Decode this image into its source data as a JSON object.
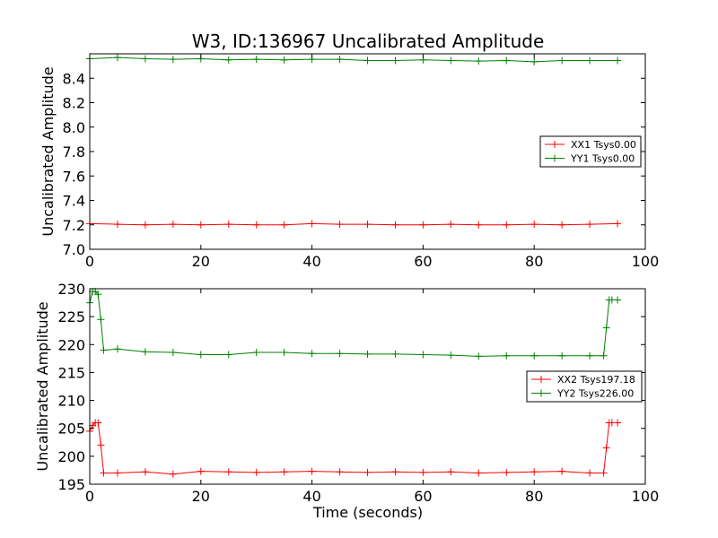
{
  "chart_data": [
    {
      "type": "line",
      "title": "W3, ID:136967 Uncalibrated Amplitude",
      "xlabel": "",
      "ylabel": "Uncalibrated Amplitude",
      "xlim": [
        0,
        100
      ],
      "ylim": [
        7.0,
        8.6
      ],
      "xticks": [
        "0",
        "20",
        "40",
        "60",
        "80",
        "100"
      ],
      "yticks": [
        "7.0",
        "7.2",
        "7.4",
        "7.6",
        "7.8",
        "8.0",
        "8.2",
        "8.4"
      ],
      "grid": false,
      "legend_position": "center-right",
      "marker": "+",
      "series": [
        {
          "name": "XX1 Tsys0.00",
          "color": "#ff0000",
          "x": [
            0,
            5,
            10,
            15,
            20,
            25,
            30,
            35,
            40,
            45,
            50,
            55,
            60,
            65,
            70,
            75,
            80,
            85,
            90,
            95
          ],
          "values": [
            7.21,
            7.205,
            7.2,
            7.205,
            7.2,
            7.205,
            7.2,
            7.2,
            7.21,
            7.205,
            7.205,
            7.2,
            7.2,
            7.205,
            7.2,
            7.2,
            7.205,
            7.2,
            7.205,
            7.21
          ]
        },
        {
          "name": "YY1 Tsys0.00",
          "color": "#008000",
          "x": [
            0,
            5,
            10,
            15,
            20,
            25,
            30,
            35,
            40,
            45,
            50,
            55,
            60,
            65,
            70,
            75,
            80,
            85,
            90,
            95
          ],
          "values": [
            8.56,
            8.57,
            8.56,
            8.555,
            8.56,
            8.55,
            8.555,
            8.55,
            8.555,
            8.555,
            8.545,
            8.545,
            8.55,
            8.545,
            8.54,
            8.545,
            8.535,
            8.545,
            8.545,
            8.545
          ]
        }
      ]
    },
    {
      "type": "line",
      "title": "",
      "xlabel": "Time (seconds)",
      "ylabel": "Uncalibrated Amplitude",
      "xlim": [
        0,
        100
      ],
      "ylim": [
        195,
        230
      ],
      "xticks": [
        "0",
        "20",
        "40",
        "60",
        "80",
        "100"
      ],
      "yticks": [
        "195",
        "200",
        "205",
        "210",
        "215",
        "220",
        "225",
        "230"
      ],
      "grid": false,
      "legend_position": "center-right",
      "marker": "+",
      "series": [
        {
          "name": "XX2 Tsys197.18",
          "color": "#ff0000",
          "x": [
            0,
            0.5,
            1,
            1.5,
            2,
            2.5,
            5,
            10,
            15,
            20,
            25,
            30,
            35,
            40,
            45,
            50,
            55,
            60,
            65,
            70,
            75,
            80,
            85,
            90,
            92.5,
            93,
            93.5,
            94,
            95
          ],
          "values": [
            204.5,
            205.5,
            206,
            206,
            202,
            197,
            197,
            197.2,
            196.8,
            197.3,
            197.2,
            197.1,
            197.2,
            197.3,
            197.2,
            197.1,
            197.2,
            197.1,
            197.2,
            197,
            197.1,
            197.2,
            197.3,
            197,
            197,
            201.5,
            206,
            206,
            206
          ]
        },
        {
          "name": "YY2 Tsys226.00",
          "color": "#008000",
          "x": [
            0,
            0.5,
            1,
            1.5,
            2,
            2.5,
            5,
            10,
            15,
            20,
            25,
            30,
            35,
            40,
            45,
            50,
            55,
            60,
            65,
            70,
            75,
            80,
            85,
            90,
            92.5,
            93,
            93.5,
            94,
            95
          ],
          "values": [
            227.5,
            229.5,
            229.5,
            229,
            224.5,
            219,
            219.2,
            218.7,
            218.6,
            218.2,
            218.2,
            218.6,
            218.6,
            218.4,
            218.4,
            218.3,
            218.3,
            218.2,
            218.1,
            217.9,
            218,
            218,
            218,
            218,
            218,
            223,
            228,
            228,
            228
          ]
        }
      ]
    }
  ]
}
